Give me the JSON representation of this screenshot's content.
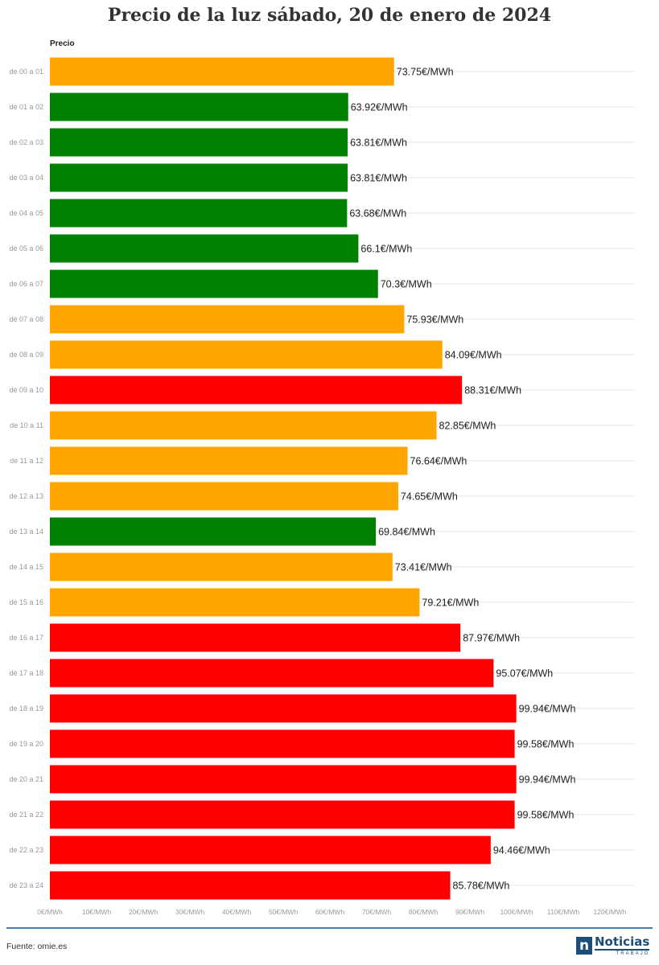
{
  "title": "Precio de la luz sábado, 20 de enero de 2024",
  "source": "Fuente: omie.es",
  "logo": {
    "main": "Noticias",
    "sub": "TRABAJO"
  },
  "colors": {
    "low": "#008000",
    "mid": "#FFA500",
    "high": "#FF0000"
  },
  "chart_data": {
    "type": "bar",
    "orientation": "horizontal",
    "title": "Precio de la luz sábado, 20 de enero de 2024",
    "series_header": "Precio",
    "value_suffix": "€/MWh",
    "xlim": [
      0,
      120
    ],
    "x_ticks": [
      "0€/MWh",
      "10€/MWh",
      "20€/MWh",
      "30€/MWh",
      "40€/MWh",
      "50€/MWh",
      "60€/MWh",
      "70€/MWh",
      "80€/MWh",
      "90€/MWh",
      "100€/MWh",
      "110€/MWh",
      "120€/MWh"
    ],
    "x_tick_values": [
      0,
      10,
      20,
      30,
      40,
      50,
      60,
      70,
      80,
      90,
      100,
      110,
      120
    ],
    "grid": true,
    "categories": [
      "de 00 a 01",
      "de 01 a 02",
      "de 02 a 03",
      "de 03 a 04",
      "de 04 a 05",
      "de 05 a 06",
      "de 06 a 07",
      "de 07 a 08",
      "de 08 a 09",
      "de 09 a 10",
      "de 10 a 11",
      "de 11 a 12",
      "de 12 a 13",
      "de 13 a 14",
      "de 14 a 15",
      "de 15 a 16",
      "de 16 a 17",
      "de 17 a 18",
      "de 18 a 19",
      "de 19 a 20",
      "de 20 a 21",
      "de 21 a 22",
      "de 22 a 23",
      "de 23 a 24"
    ],
    "values": [
      73.75,
      63.92,
      63.81,
      63.81,
      63.68,
      66.1,
      70.3,
      75.93,
      84.09,
      88.31,
      82.85,
      76.64,
      74.65,
      69.84,
      73.41,
      79.21,
      87.97,
      95.07,
      99.94,
      99.58,
      99.94,
      99.58,
      94.46,
      85.78
    ],
    "value_labels": [
      "73.75€/MWh",
      "63.92€/MWh",
      "63.81€/MWh",
      "63.81€/MWh",
      "63.68€/MWh",
      "66.1€/MWh",
      "70.3€/MWh",
      "75.93€/MWh",
      "84.09€/MWh",
      "88.31€/MWh",
      "82.85€/MWh",
      "76.64€/MWh",
      "74.65€/MWh",
      "69.84€/MWh",
      "73.41€/MWh",
      "79.21€/MWh",
      "87.97€/MWh",
      "95.07€/MWh",
      "99.94€/MWh",
      "99.58€/MWh",
      "99.94€/MWh",
      "99.58€/MWh",
      "94.46€/MWh",
      "85.78€/MWh"
    ],
    "bar_colors": [
      "#FFA500",
      "#008000",
      "#008000",
      "#008000",
      "#008000",
      "#008000",
      "#008000",
      "#FFA500",
      "#FFA500",
      "#FF0000",
      "#FFA500",
      "#FFA500",
      "#FFA500",
      "#008000",
      "#FFA500",
      "#FFA500",
      "#FF0000",
      "#FF0000",
      "#FF0000",
      "#FF0000",
      "#FF0000",
      "#FF0000",
      "#FF0000",
      "#FF0000"
    ]
  }
}
